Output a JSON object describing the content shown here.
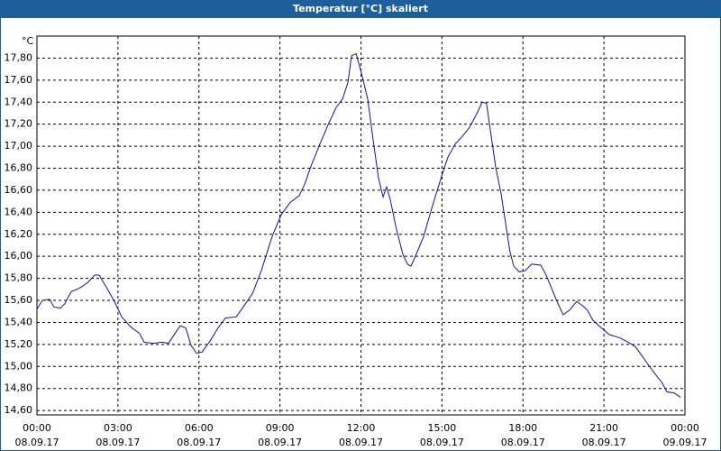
{
  "chart_data": {
    "type": "line",
    "title": "Temperatur [°C] skaliert",
    "y_label": "°C",
    "x": [
      0,
      0.2,
      0.47,
      0.63,
      0.87,
      1.03,
      1.27,
      1.57,
      1.87,
      2.14,
      2.3,
      2.57,
      2.87,
      3.14,
      3.47,
      3.8,
      3.97,
      4.31,
      4.64,
      4.87,
      5.14,
      5.31,
      5.51,
      5.71,
      5.91,
      6.11,
      6.41,
      6.71,
      6.98,
      7.38,
      7.64,
      7.98,
      8.31,
      8.71,
      9.05,
      9.38,
      9.71,
      9.91,
      10.15,
      10.48,
      10.81,
      11.08,
      11.32,
      11.52,
      11.65,
      11.82,
      11.98,
      12.25,
      12.45,
      12.65,
      12.82,
      12.95,
      13.08,
      13.32,
      13.55,
      13.72,
      13.85,
      14.05,
      14.32,
      14.65,
      14.99,
      15.22,
      15.49,
      15.72,
      15.99,
      16.15,
      16.32,
      16.49,
      16.65,
      16.82,
      16.99,
      17.19,
      17.32,
      17.52,
      17.66,
      17.86,
      18.09,
      18.32,
      18.66,
      18.86,
      19.06,
      19.26,
      19.49,
      19.72,
      19.99,
      20.22,
      20.39,
      20.59,
      20.86,
      21.19,
      21.59,
      21.9,
      22.16,
      22.4,
      22.6,
      22.9,
      23.16,
      23.33,
      23.6,
      23.83
    ],
    "series": [
      {
        "name": "Temperatur",
        "color": "#1010b0",
        "values": [
          15.52,
          15.6,
          15.61,
          15.54,
          15.53,
          15.57,
          15.68,
          15.71,
          15.76,
          15.83,
          15.83,
          15.72,
          15.59,
          15.45,
          15.36,
          15.3,
          15.22,
          15.21,
          15.22,
          15.21,
          15.31,
          15.37,
          15.35,
          15.19,
          15.12,
          15.13,
          15.23,
          15.35,
          15.44,
          15.45,
          15.54,
          15.66,
          15.87,
          16.18,
          16.38,
          16.49,
          16.55,
          16.65,
          16.82,
          17.02,
          17.21,
          17.35,
          17.43,
          17.58,
          17.82,
          17.84,
          17.7,
          17.43,
          17.06,
          16.71,
          16.54,
          16.63,
          16.52,
          16.24,
          16.02,
          15.93,
          15.91,
          16.02,
          16.18,
          16.46,
          16.73,
          16.9,
          17.02,
          17.08,
          17.16,
          17.23,
          17.31,
          17.4,
          17.39,
          17.1,
          16.81,
          16.57,
          16.36,
          16.04,
          15.91,
          15.86,
          15.87,
          15.93,
          15.92,
          15.83,
          15.71,
          15.59,
          15.47,
          15.51,
          15.59,
          15.55,
          15.51,
          15.42,
          15.36,
          15.29,
          15.26,
          15.22,
          15.18,
          15.1,
          15.03,
          14.93,
          14.85,
          14.77,
          14.76,
          14.72
        ]
      }
    ],
    "xlim": [
      0,
      24
    ],
    "xticks": [
      {
        "value": 0,
        "label": "00:00 08.09.17"
      },
      {
        "value": 3,
        "label": "03:00 08.09.17"
      },
      {
        "value": 6,
        "label": "06:00 08.09.17"
      },
      {
        "value": 9,
        "label": "09:00 08.09.17"
      },
      {
        "value": 12,
        "label": "12:00 08.09.17"
      },
      {
        "value": 15,
        "label": "15:00 08.09.17"
      },
      {
        "value": 18,
        "label": "18:00 08.09.17"
      },
      {
        "value": 21,
        "label": "21:00 08.09.17"
      },
      {
        "value": 24,
        "label": "00:00 09.09.17"
      }
    ],
    "ylim": [
      14.56,
      18.0
    ],
    "yticks": [
      {
        "value": 14.6,
        "label": "14,60"
      },
      {
        "value": 14.8,
        "label": "14,80"
      },
      {
        "value": 15.0,
        "label": "15,00"
      },
      {
        "value": 15.2,
        "label": "15,20"
      },
      {
        "value": 15.4,
        "label": "15,40"
      },
      {
        "value": 15.6,
        "label": "15,60"
      },
      {
        "value": 15.8,
        "label": "15,80"
      },
      {
        "value": 16.0,
        "label": "16,00"
      },
      {
        "value": 16.2,
        "label": "16,20"
      },
      {
        "value": 16.4,
        "label": "16,40"
      },
      {
        "value": 16.6,
        "label": "16,60"
      },
      {
        "value": 16.8,
        "label": "16,80"
      },
      {
        "value": 17.0,
        "label": "17,00"
      },
      {
        "value": 17.2,
        "label": "17,20"
      },
      {
        "value": 17.4,
        "label": "17,40"
      },
      {
        "value": 17.6,
        "label": "17,60"
      },
      {
        "value": 17.8,
        "label": "17,80"
      }
    ],
    "grid": true
  }
}
